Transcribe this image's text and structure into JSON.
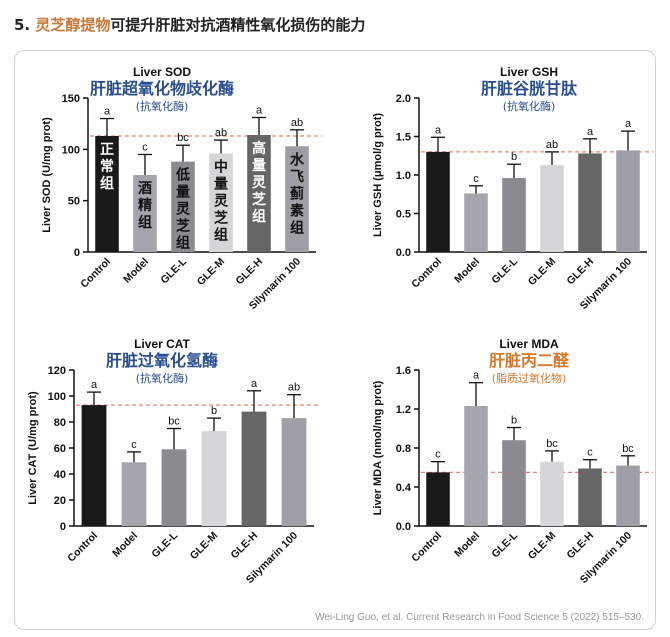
{
  "heading": {
    "number": "5.",
    "highlight": "灵芝醇提物",
    "rest": "可提升肝脏对抗酒精性氧化损伤的能力"
  },
  "citation": "Wei-Ling Guo, et al. Current Research in Food Science 5 (2022) 515–530.",
  "colors": {
    "bars": [
      "#1a1a1a",
      "#a5a5ad",
      "#8a8a8f",
      "#d6d6d8",
      "#666666",
      "#9e9ea6"
    ],
    "reference_line": "#e8807a",
    "title_cn": "#2b4f8e",
    "title_cn_mda": "#d4792e",
    "highlight": "#c87a3a"
  },
  "chart_data": [
    {
      "type": "bar",
      "title": "Liver SOD",
      "subtitle_cn": "肝脏超氧化物歧化酶",
      "subtitle_cn2": "(抗氧化酶)",
      "ylabel": "Liver SOD (U/mg prot)",
      "ylim": [
        0,
        150
      ],
      "yticks": [
        "0",
        "50",
        "100",
        "150"
      ],
      "categories": [
        "Control",
        "Model",
        "GLE-L",
        "GLE-M",
        "GLE-H",
        "Silymarin 100"
      ],
      "values": [
        113,
        75,
        88,
        96,
        114,
        103
      ],
      "errors": [
        17,
        20,
        16,
        13,
        17,
        16
      ],
      "letters": [
        "a",
        "c",
        "bc",
        "ab",
        "a",
        "ab"
      ],
      "bar_labels": [
        "正常组",
        "酒精组",
        "低量灵芝组",
        "中量灵芝组",
        "高量灵芝组",
        "水飞蓟素组"
      ],
      "reference_value": 113
    },
    {
      "type": "bar",
      "title": "Liver GSH",
      "subtitle_cn": "肝脏谷胱甘肽",
      "subtitle_cn2": "(抗氧化酶)",
      "ylabel": "Liver GSH (μmol/g prot)",
      "ylim": [
        0,
        2.0
      ],
      "yticks": [
        "0.0",
        "0.5",
        "1.0",
        "1.5",
        "2.0"
      ],
      "categories": [
        "Control",
        "Model",
        "GLE-L",
        "GLE-M",
        "GLE-H",
        "Silymarin 100"
      ],
      "values": [
        1.3,
        0.76,
        0.96,
        1.13,
        1.28,
        1.32
      ],
      "errors": [
        0.19,
        0.1,
        0.18,
        0.17,
        0.19,
        0.25
      ],
      "letters": [
        "a",
        "c",
        "b",
        "ab",
        "a",
        "a"
      ],
      "reference_value": 1.3
    },
    {
      "type": "bar",
      "title": "Liver CAT",
      "subtitle_cn": "肝脏过氧化氢酶",
      "subtitle_cn2": "(抗氧化酶)",
      "ylabel": "Liver CAT (U/mg prot)",
      "ylim": [
        0,
        120
      ],
      "yticks": [
        "0",
        "20",
        "40",
        "60",
        "80",
        "100",
        "120"
      ],
      "categories": [
        "Control",
        "Model",
        "GLE-L",
        "GLE-M",
        "GLE-H",
        "Silymarin 100"
      ],
      "values": [
        93,
        49,
        59,
        73,
        88,
        83
      ],
      "errors": [
        10,
        8,
        16,
        10,
        16,
        18
      ],
      "letters": [
        "a",
        "c",
        "bc",
        "b",
        "a",
        "ab"
      ],
      "reference_value": 93
    },
    {
      "type": "bar",
      "title": "Liver MDA",
      "subtitle_cn": "肝脏丙二醛",
      "subtitle_cn2": "(脂质过氧化物)",
      "ylabel": "Liver MDA (nmol/mg prot)",
      "ylim": [
        0,
        1.6
      ],
      "yticks": [
        "0.0",
        "0.4",
        "0.8",
        "1.2",
        "1.6"
      ],
      "categories": [
        "Control",
        "Model",
        "GLE-L",
        "GLE-M",
        "GLE-H",
        "Silymarin 100"
      ],
      "values": [
        0.55,
        1.23,
        0.88,
        0.66,
        0.59,
        0.62
      ],
      "errors": [
        0.11,
        0.24,
        0.13,
        0.11,
        0.09,
        0.1
      ],
      "letters": [
        "c",
        "a",
        "b",
        "bc",
        "c",
        "bc"
      ],
      "reference_value": 0.55
    }
  ]
}
